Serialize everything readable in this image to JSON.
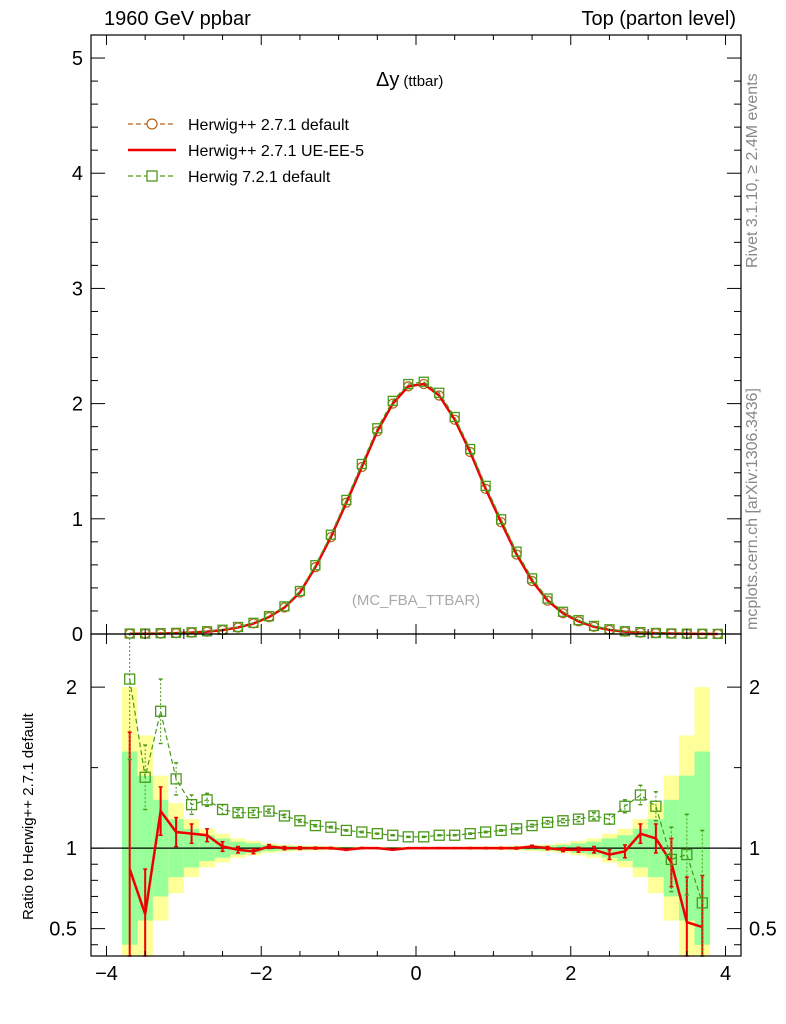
{
  "header": {
    "left": "1960 GeV ppbar",
    "right": "Top (parton level)"
  },
  "side_labels": {
    "rivet": "Rivet 3.1.10, ≥ 2.4M events",
    "mcplots": "mcplots.cern.ch [arXiv:1306.3436]"
  },
  "chart_data": [
    {
      "type": "line",
      "title": "Δy",
      "title_suffix": "(ttbar)",
      "watermark": "(MC_FBA_TTBAR)",
      "xlim": [
        -4.2,
        4.2
      ],
      "ylim": [
        0,
        5.2
      ],
      "yticks": [
        0,
        1,
        2,
        3,
        4,
        5
      ],
      "ytick_labels": [
        "0",
        "1",
        "2",
        "3",
        "4",
        "5"
      ],
      "x": [
        -3.7,
        -3.5,
        -3.3,
        -3.1,
        -2.9,
        -2.7,
        -2.5,
        -2.3,
        -2.1,
        -1.9,
        -1.7,
        -1.5,
        -1.3,
        -1.1,
        -0.9,
        -0.7,
        -0.5,
        -0.3,
        -0.1,
        0.1,
        0.3,
        0.5,
        0.7,
        0.9,
        1.1,
        1.3,
        1.5,
        1.7,
        1.9,
        2.1,
        2.3,
        2.5,
        2.7,
        2.9,
        3.1,
        3.3,
        3.5,
        3.7,
        3.9
      ],
      "legend_placement": "top-left",
      "series": [
        {
          "name": "Herwig++ 2.7.1 default",
          "color": "#b5651d",
          "style": "dashed",
          "marker": "circle",
          "values": [
            0.002,
            0.003,
            0.004,
            0.007,
            0.012,
            0.02,
            0.034,
            0.057,
            0.092,
            0.147,
            0.23,
            0.36,
            0.58,
            0.84,
            1.14,
            1.45,
            1.76,
            2.0,
            2.15,
            2.17,
            2.07,
            1.86,
            1.58,
            1.26,
            0.97,
            0.69,
            0.46,
            0.29,
            0.18,
            0.11,
            0.063,
            0.036,
            0.021,
            0.012,
            0.007,
            0.004,
            0.002,
            0.001,
            0.0005
          ]
        },
        {
          "name": "Herwig++ 2.7.1 UE-EE-5",
          "color": "#ee0000",
          "style": "solid",
          "marker": "none",
          "values": [
            0.002,
            0.002,
            0.004,
            0.008,
            0.013,
            0.021,
            0.034,
            0.057,
            0.091,
            0.147,
            0.23,
            0.361,
            0.58,
            0.841,
            1.14,
            1.45,
            1.76,
            2.0,
            2.15,
            2.171,
            2.07,
            1.86,
            1.58,
            1.26,
            0.97,
            0.691,
            0.461,
            0.291,
            0.18,
            0.11,
            0.063,
            0.036,
            0.021,
            0.013,
            0.008,
            0.004,
            0.002,
            0.001,
            0.0005
          ]
        },
        {
          "name": "Herwig 7.2.1 default",
          "color": "#4a9a1a",
          "style": "dashed",
          "marker": "square",
          "values": [
            0.004,
            0.004,
            0.007,
            0.01,
            0.015,
            0.024,
            0.037,
            0.061,
            0.097,
            0.155,
            0.24,
            0.373,
            0.597,
            0.862,
            1.164,
            1.476,
            1.786,
            2.024,
            2.17,
            2.19,
            2.094,
            1.884,
            1.606,
            1.286,
            0.996,
            0.715,
            0.483,
            0.308,
            0.193,
            0.12,
            0.07,
            0.041,
            0.024,
            0.016,
            0.009,
            0.005,
            0.003,
            0.002,
            0.001
          ]
        }
      ]
    },
    {
      "type": "line",
      "ylabel": "Ratio to Herwig++ 2.7.1 default",
      "xlim": [
        -4.2,
        4.2
      ],
      "ylim": [
        0.33,
        2.33
      ],
      "yticks": [
        0.5,
        1,
        2
      ],
      "ytick_labels": [
        "0.5",
        "1",
        "2"
      ],
      "xticks": [
        -4,
        -2,
        0,
        2,
        4
      ],
      "xtick_labels": [
        "−4",
        "−2",
        "0",
        "2",
        "4"
      ],
      "x": [
        -3.7,
        -3.5,
        -3.3,
        -3.1,
        -2.9,
        -2.7,
        -2.5,
        -2.3,
        -2.1,
        -1.9,
        -1.7,
        -1.5,
        -1.3,
        -1.1,
        -0.9,
        -0.7,
        -0.5,
        -0.3,
        -0.1,
        0.1,
        0.3,
        0.5,
        0.7,
        0.9,
        1.1,
        1.3,
        1.5,
        1.7,
        1.9,
        2.1,
        2.3,
        2.5,
        2.7,
        2.9,
        3.1,
        3.3,
        3.5,
        3.7
      ],
      "reference_band": {
        "color_inner": "#99ff99",
        "color_outer": "#ffff99",
        "inner_halfwidth": [
          0.6,
          0.45,
          0.3,
          0.18,
          0.12,
          0.08,
          0.06,
          0.04,
          0.03,
          0.02,
          0.015,
          0.012,
          0.01,
          0.008,
          0.007,
          0.006,
          0.005,
          0.005,
          0.005,
          0.005,
          0.005,
          0.005,
          0.006,
          0.007,
          0.008,
          0.01,
          0.012,
          0.015,
          0.02,
          0.03,
          0.04,
          0.06,
          0.08,
          0.12,
          0.18,
          0.3,
          0.45,
          0.6
        ],
        "outer_halfwidth": [
          1.0,
          0.7,
          0.45,
          0.28,
          0.18,
          0.12,
          0.09,
          0.06,
          0.045,
          0.03,
          0.022,
          0.018,
          0.015,
          0.012,
          0.01,
          0.009,
          0.008,
          0.008,
          0.008,
          0.008,
          0.008,
          0.008,
          0.009,
          0.01,
          0.012,
          0.015,
          0.018,
          0.022,
          0.03,
          0.045,
          0.06,
          0.09,
          0.12,
          0.18,
          0.28,
          0.45,
          0.7,
          1.0
        ]
      },
      "series": [
        {
          "name": "Herwig++ 2.7.1 UE-EE-5",
          "color": "#ee0000",
          "style": "solid",
          "values": [
            0.87,
            0.59,
            1.23,
            1.1,
            1.09,
            1.08,
            1.01,
            0.99,
            0.98,
            1.01,
            1.0,
            1.0,
            1.0,
            1.0,
            0.99,
            1.0,
            1.0,
            0.99,
            1.0,
            1.0,
            1.0,
            1.0,
            1.0,
            1.0,
            1.0,
            1.0,
            1.01,
            1.0,
            0.99,
            0.99,
            0.99,
            0.96,
            0.98,
            1.09,
            1.06,
            0.91,
            0.54,
            0.51
          ],
          "errors": [
            0.85,
            0.28,
            0.15,
            0.09,
            0.06,
            0.04,
            0.03,
            0.02,
            0.015,
            0.012,
            0.01,
            0.008,
            0.006,
            0.005,
            0.004,
            0.004,
            0.003,
            0.003,
            0.003,
            0.003,
            0.003,
            0.003,
            0.004,
            0.004,
            0.005,
            0.006,
            0.008,
            0.01,
            0.012,
            0.015,
            0.02,
            0.03,
            0.04,
            0.06,
            0.09,
            0.15,
            0.28,
            0.32
          ]
        },
        {
          "name": "Herwig 7.2.1 default",
          "color": "#4a9a1a",
          "style": "dashed",
          "values": [
            2.05,
            1.44,
            1.85,
            1.43,
            1.27,
            1.3,
            1.24,
            1.22,
            1.22,
            1.23,
            1.2,
            1.17,
            1.14,
            1.13,
            1.11,
            1.1,
            1.09,
            1.08,
            1.07,
            1.07,
            1.08,
            1.08,
            1.09,
            1.1,
            1.11,
            1.12,
            1.14,
            1.16,
            1.17,
            1.18,
            1.2,
            1.18,
            1.26,
            1.33,
            1.26,
            0.93,
            0.96,
            0.66
          ],
          "errors": [
            0.5,
            0.2,
            0.2,
            0.1,
            0.06,
            0.04,
            0.03,
            0.02,
            0.015,
            0.012,
            0.01,
            0.008,
            0.006,
            0.005,
            0.004,
            0.004,
            0.003,
            0.003,
            0.003,
            0.003,
            0.003,
            0.003,
            0.004,
            0.004,
            0.005,
            0.006,
            0.008,
            0.01,
            0.012,
            0.015,
            0.02,
            0.03,
            0.04,
            0.06,
            0.09,
            0.2,
            0.25,
            0.45
          ]
        }
      ]
    }
  ]
}
